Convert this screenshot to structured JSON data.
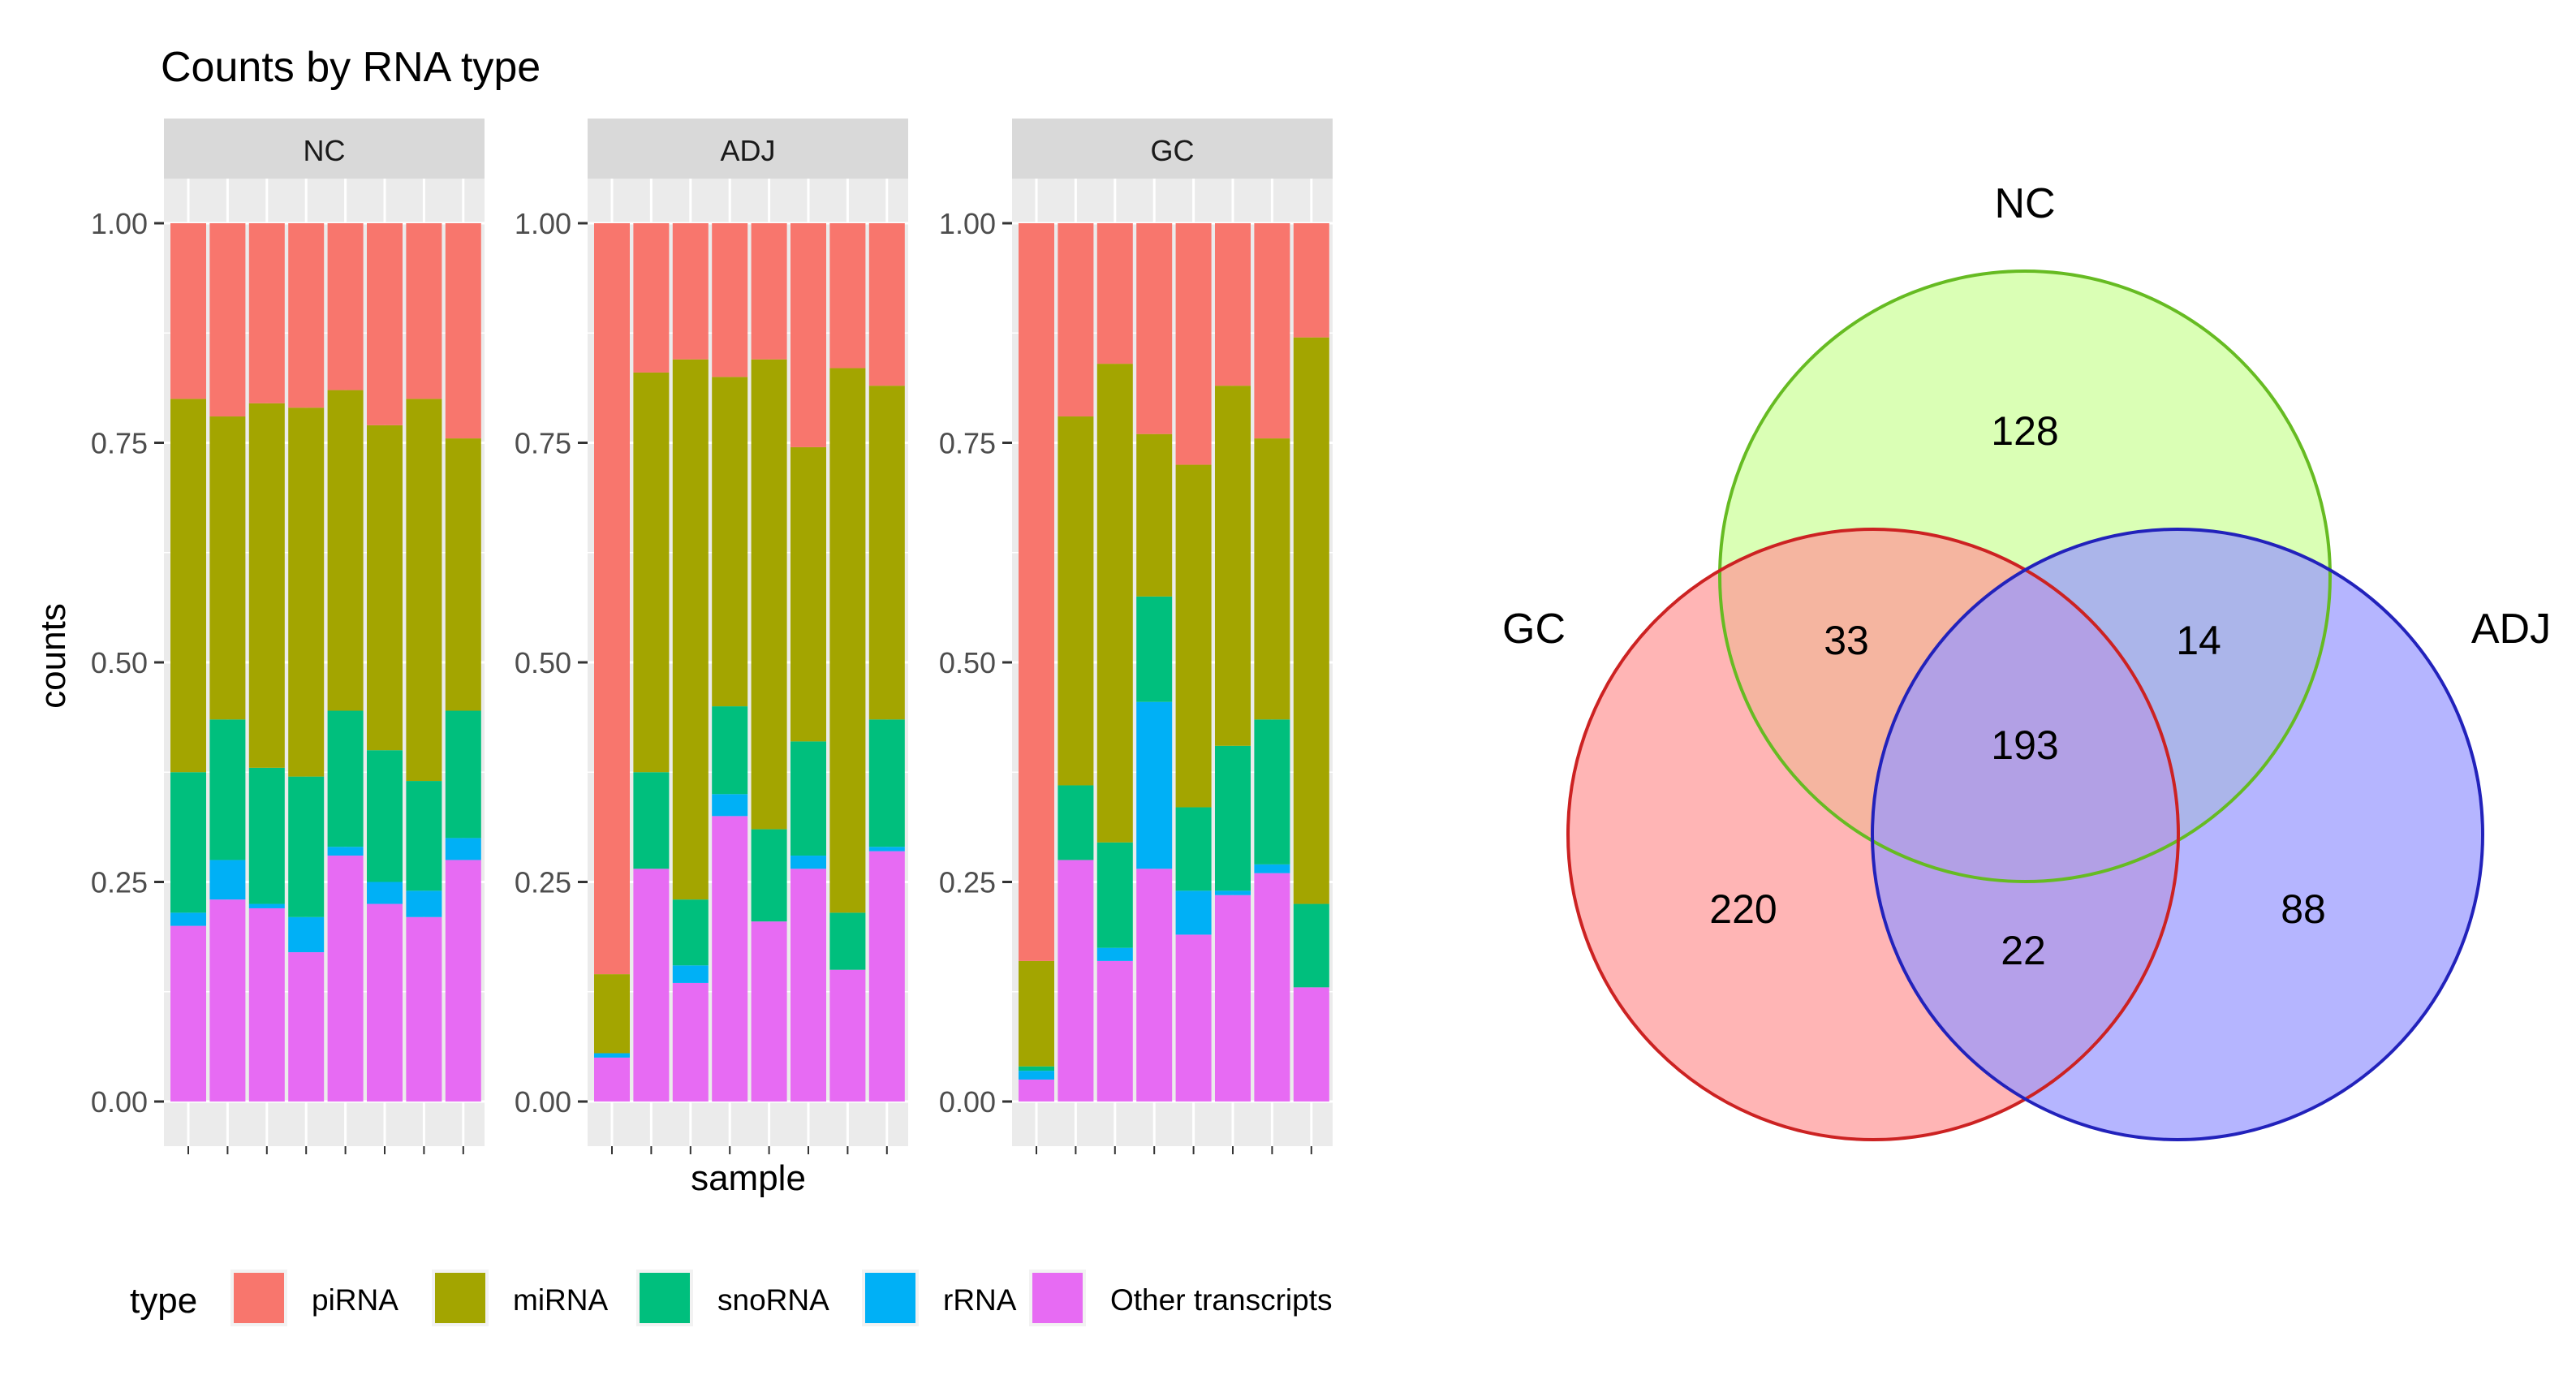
{
  "chart_data": [
    {
      "type": "bar",
      "stacked": true,
      "normalized": true,
      "title": "Counts by RNA type",
      "xlabel": "sample",
      "ylabel": "counts",
      "ylim": [
        0,
        1
      ],
      "yticks": [
        "0.00",
        "0.25",
        "0.50",
        "0.75",
        "1.00"
      ],
      "legend": {
        "title": "type",
        "position": "bottom",
        "entries": [
          {
            "label": "piRNA",
            "color": "#F8766D"
          },
          {
            "label": "miRNA",
            "color": "#A3A500"
          },
          {
            "label": "snoRNA",
            "color": "#00BF7D"
          },
          {
            "label": "rRNA",
            "color": "#00B0F6"
          },
          {
            "label": "Other transcripts",
            "color": "#E76BF3"
          }
        ]
      },
      "stack_order": [
        "Other transcripts",
        "rRNA",
        "snoRNA",
        "miRNA",
        "piRNA"
      ],
      "facets": [
        {
          "name": "NC",
          "samples": [
            {
              "Other transcripts": 0.2,
              "rRNA": 0.015,
              "snoRNA": 0.16,
              "miRNA": 0.425,
              "piRNA": 0.2
            },
            {
              "Other transcripts": 0.23,
              "rRNA": 0.045,
              "snoRNA": 0.16,
              "miRNA": 0.345,
              "piRNA": 0.22
            },
            {
              "Other transcripts": 0.22,
              "rRNA": 0.005,
              "snoRNA": 0.155,
              "miRNA": 0.415,
              "piRNA": 0.205
            },
            {
              "Other transcripts": 0.17,
              "rRNA": 0.04,
              "snoRNA": 0.16,
              "miRNA": 0.42,
              "piRNA": 0.21
            },
            {
              "Other transcripts": 0.28,
              "rRNA": 0.01,
              "snoRNA": 0.155,
              "miRNA": 0.365,
              "piRNA": 0.19
            },
            {
              "Other transcripts": 0.225,
              "rRNA": 0.025,
              "snoRNA": 0.15,
              "miRNA": 0.37,
              "piRNA": 0.23
            },
            {
              "Other transcripts": 0.21,
              "rRNA": 0.03,
              "snoRNA": 0.125,
              "miRNA": 0.435,
              "piRNA": 0.2
            },
            {
              "Other transcripts": 0.275,
              "rRNA": 0.025,
              "snoRNA": 0.145,
              "miRNA": 0.31,
              "piRNA": 0.245
            }
          ]
        },
        {
          "name": "ADJ",
          "samples": [
            {
              "Other transcripts": 0.05,
              "rRNA": 0.005,
              "snoRNA": 0.0,
              "miRNA": 0.09,
              "piRNA": 0.855
            },
            {
              "Other transcripts": 0.265,
              "rRNA": 0.0,
              "snoRNA": 0.11,
              "miRNA": 0.455,
              "piRNA": 0.17
            },
            {
              "Other transcripts": 0.135,
              "rRNA": 0.02,
              "snoRNA": 0.075,
              "miRNA": 0.615,
              "piRNA": 0.155
            },
            {
              "Other transcripts": 0.325,
              "rRNA": 0.025,
              "snoRNA": 0.1,
              "miRNA": 0.375,
              "piRNA": 0.175
            },
            {
              "Other transcripts": 0.205,
              "rRNA": 0.0,
              "snoRNA": 0.105,
              "miRNA": 0.535,
              "piRNA": 0.155
            },
            {
              "Other transcripts": 0.265,
              "rRNA": 0.015,
              "snoRNA": 0.13,
              "miRNA": 0.335,
              "piRNA": 0.255
            },
            {
              "Other transcripts": 0.15,
              "rRNA": 0.0,
              "snoRNA": 0.065,
              "miRNA": 0.62,
              "piRNA": 0.165
            },
            {
              "Other transcripts": 0.285,
              "rRNA": 0.005,
              "snoRNA": 0.145,
              "miRNA": 0.38,
              "piRNA": 0.185
            }
          ]
        },
        {
          "name": "GC",
          "samples": [
            {
              "Other transcripts": 0.025,
              "rRNA": 0.01,
              "snoRNA": 0.005,
              "miRNA": 0.12,
              "piRNA": 0.84
            },
            {
              "Other transcripts": 0.275,
              "rRNA": 0.0,
              "snoRNA": 0.085,
              "miRNA": 0.42,
              "piRNA": 0.22
            },
            {
              "Other transcripts": 0.16,
              "rRNA": 0.015,
              "snoRNA": 0.12,
              "miRNA": 0.545,
              "piRNA": 0.16
            },
            {
              "Other transcripts": 0.265,
              "rRNA": 0.19,
              "snoRNA": 0.12,
              "miRNA": 0.185,
              "piRNA": 0.24
            },
            {
              "Other transcripts": 0.19,
              "rRNA": 0.05,
              "snoRNA": 0.095,
              "miRNA": 0.39,
              "piRNA": 0.275
            },
            {
              "Other transcripts": 0.235,
              "rRNA": 0.005,
              "snoRNA": 0.165,
              "miRNA": 0.41,
              "piRNA": 0.185
            },
            {
              "Other transcripts": 0.26,
              "rRNA": 0.01,
              "snoRNA": 0.165,
              "miRNA": 0.32,
              "piRNA": 0.245
            },
            {
              "Other transcripts": 0.13,
              "rRNA": 0.0,
              "snoRNA": 0.095,
              "miRNA": 0.645,
              "piRNA": 0.13
            }
          ]
        }
      ]
    },
    {
      "type": "venn",
      "sets": [
        {
          "name": "NC",
          "color": "#CCFF99",
          "stroke": "#66BB22",
          "label_position": "top"
        },
        {
          "name": "GC",
          "color": "#FF9999",
          "stroke": "#CC2222",
          "label_position": "left"
        },
        {
          "name": "ADJ",
          "color": "#9999FF",
          "stroke": "#2222BB",
          "label_position": "right"
        }
      ],
      "regions": [
        {
          "sets": [
            "NC"
          ],
          "value": "128"
        },
        {
          "sets": [
            "GC",
            "NC"
          ],
          "value": "33"
        },
        {
          "sets": [
            "NC",
            "ADJ"
          ],
          "value": "14"
        },
        {
          "sets": [
            "GC",
            "NC",
            "ADJ"
          ],
          "value": "193"
        },
        {
          "sets": [
            "GC"
          ],
          "value": "220"
        },
        {
          "sets": [
            "GC",
            "ADJ"
          ],
          "value": "22"
        },
        {
          "sets": [
            "ADJ"
          ],
          "value": "88"
        }
      ]
    }
  ]
}
